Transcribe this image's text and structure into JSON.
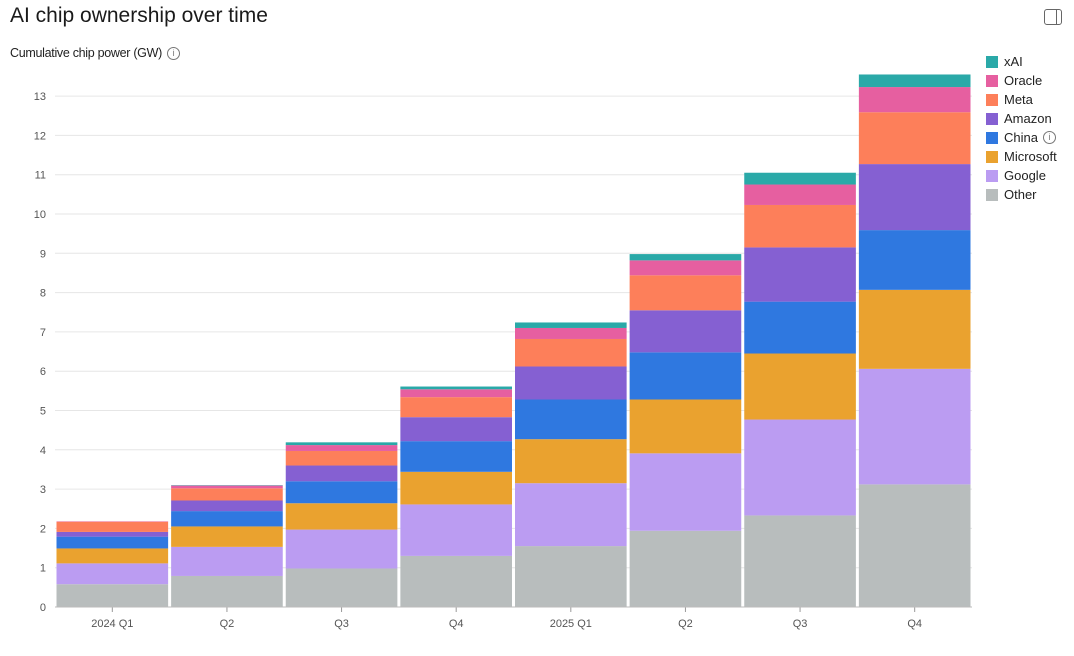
{
  "chart_data": {
    "type": "bar",
    "stacked": true,
    "title": "AI chip ownership over time",
    "ylabel": "Cumulative chip power (GW)",
    "xlabel": "",
    "categories": [
      "2024 Q1",
      "Q2",
      "Q3",
      "Q4",
      "2025 Q1",
      "Q2",
      "Q3",
      "Q4"
    ],
    "ylim": [
      0,
      13.6
    ],
    "yticks": [
      0,
      1,
      2,
      3,
      4,
      5,
      6,
      7,
      8,
      9,
      10,
      11,
      12,
      13
    ],
    "grid": true,
    "legend_position": "right",
    "series": [
      {
        "name": "Other",
        "color": "#b8bdbd",
        "values": [
          0.58,
          0.79,
          0.98,
          1.3,
          1.55,
          1.94,
          2.33,
          3.12
        ]
      },
      {
        "name": "Google",
        "color": "#bb9cf2",
        "values": [
          0.53,
          0.74,
          0.99,
          1.31,
          1.6,
          1.97,
          2.44,
          2.94
        ]
      },
      {
        "name": "Microsoft",
        "color": "#eaa22f",
        "values": [
          0.38,
          0.52,
          0.67,
          0.83,
          1.12,
          1.37,
          1.68,
          2.01
        ]
      },
      {
        "name": "China",
        "color": "#2f78e0",
        "values": [
          0.3,
          0.39,
          0.56,
          0.78,
          1.01,
          1.2,
          1.32,
          1.52
        ]
      },
      {
        "name": "Amazon",
        "color": "#8560d2",
        "values": [
          0.12,
          0.27,
          0.4,
          0.61,
          0.84,
          1.07,
          1.38,
          1.68
        ]
      },
      {
        "name": "Meta",
        "color": "#fd7f5a",
        "values": [
          0.26,
          0.31,
          0.37,
          0.51,
          0.7,
          0.89,
          1.08,
          1.32
        ]
      },
      {
        "name": "Oracle",
        "color": "#e65fa0",
        "values": [
          0.01,
          0.07,
          0.15,
          0.2,
          0.28,
          0.38,
          0.52,
          0.64
        ]
      },
      {
        "name": "xAI",
        "color": "#2aa9a8",
        "values": [
          0.0,
          0.01,
          0.07,
          0.07,
          0.14,
          0.16,
          0.3,
          0.32
        ]
      }
    ]
  }
}
